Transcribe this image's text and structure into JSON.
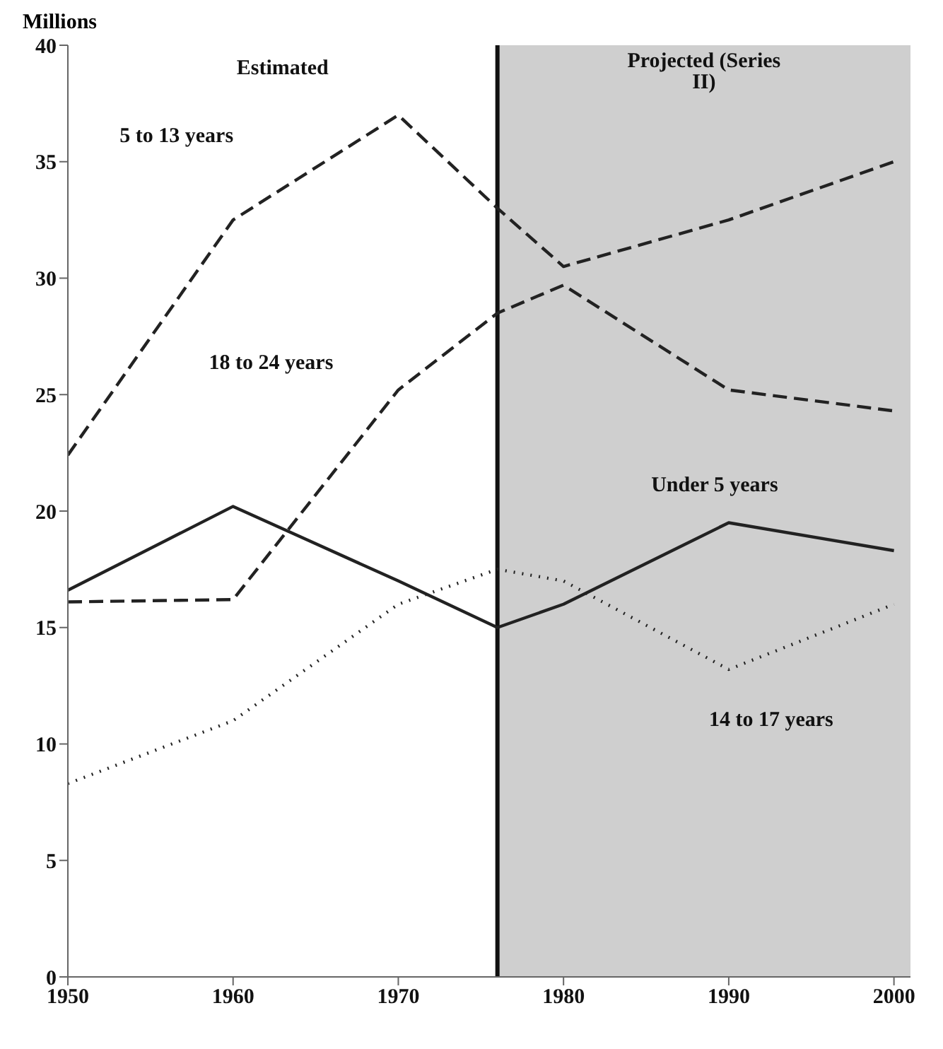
{
  "chart_data": {
    "type": "line",
    "ylabel": "Millions",
    "x": [
      1950,
      1960,
      1970,
      1976,
      1980,
      1990,
      2000
    ],
    "series": [
      {
        "name": "5 to 13 years",
        "color": "#222222",
        "line_style": "dashed",
        "values": [
          22.4,
          32.5,
          37,
          33,
          30.5,
          32.5,
          35
        ]
      },
      {
        "name": "18 to 24 years",
        "color": "#222222",
        "line_style": "dashed",
        "values": [
          16.1,
          16.2,
          25.2,
          28.5,
          29.7,
          25.2,
          24.3
        ]
      },
      {
        "name": "Under 5 years",
        "color": "#222222",
        "line_style": "solid",
        "values": [
          16.6,
          20.2,
          17,
          15,
          16,
          19.5,
          18.3
        ]
      },
      {
        "name": "14 to 17 years",
        "color": "#222222",
        "line_style": "dotted",
        "values": [
          8.3,
          11,
          16,
          17.5,
          17,
          13.2,
          16
        ]
      }
    ],
    "xlim": [
      1950,
      2001
    ],
    "xticks": [
      1950,
      1960,
      1970,
      1980,
      1990,
      2000
    ],
    "ylim": [
      0,
      40
    ],
    "yticks": [
      0,
      5,
      10,
      15,
      20,
      25,
      30,
      35,
      40
    ],
    "annotations": [
      "Estimated"
    ],
    "bands": [
      {
        "axis": "x",
        "from": 1976,
        "to": 2001,
        "label": "Projected (Series II)",
        "color": "#cfcfcf"
      }
    ],
    "ref_lines": [
      {
        "axis": "x",
        "value": 1976,
        "color": "#111111"
      }
    ],
    "grid": false,
    "legend": false,
    "marker": "none"
  }
}
